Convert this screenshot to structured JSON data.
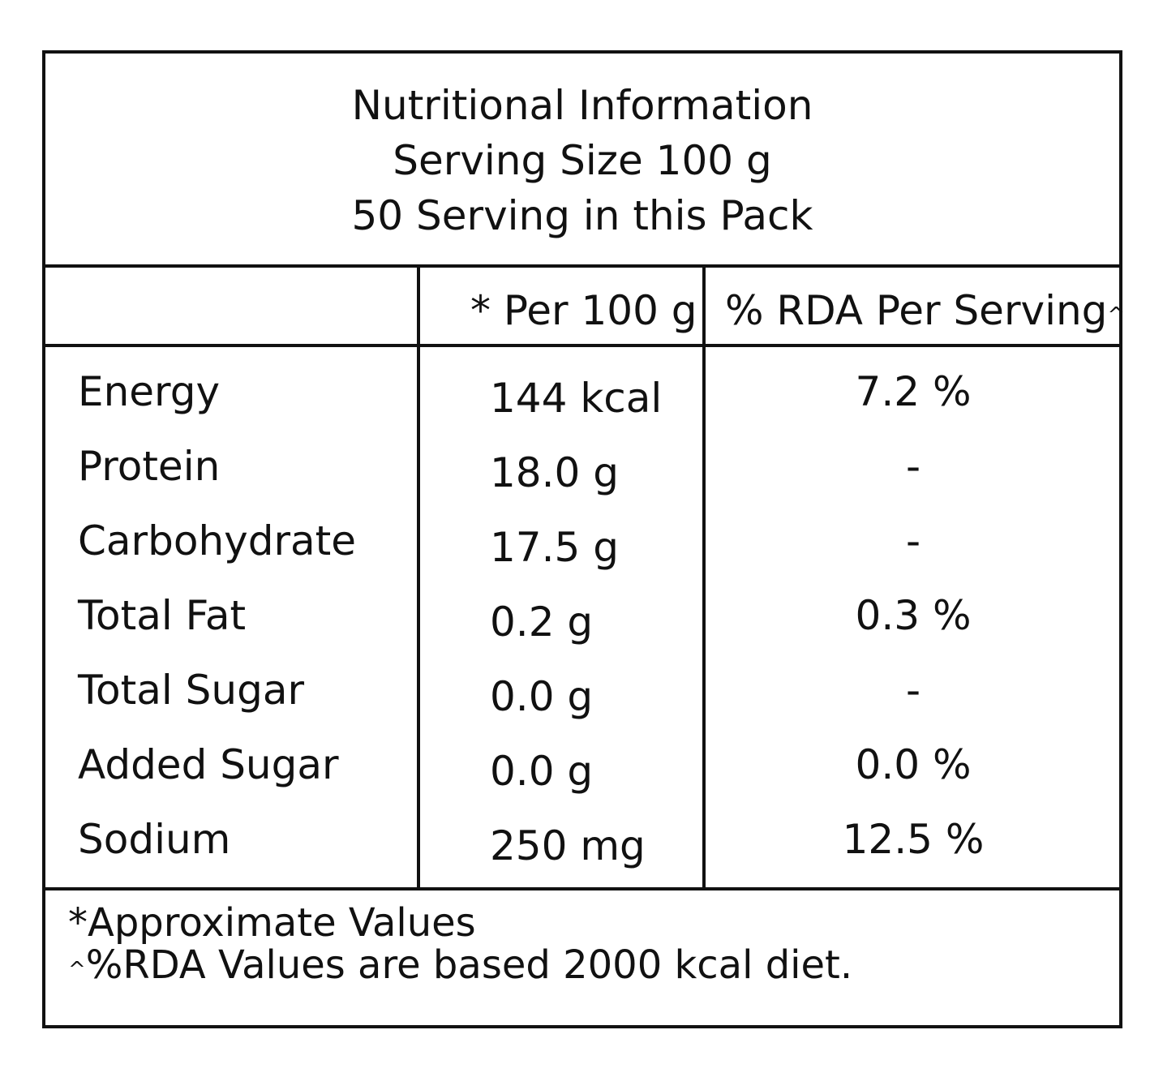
{
  "title": {
    "line1": "Nutritional Information",
    "line2": "Serving Size 100 g",
    "line3": "50 Serving in this Pack"
  },
  "columns": {
    "per_100g": "* Per 100 g",
    "rda": "% RDA Per Serving",
    "rda_mark": "^"
  },
  "rows": [
    {
      "name": "Energy",
      "value": "144 kcal",
      "rda": "7.2 %"
    },
    {
      "name": "Protein",
      "value": "18.0 g",
      "rda": "-"
    },
    {
      "name": "Carbohydrate",
      "value": "17.5 g",
      "rda": "-"
    },
    {
      "name": "Total Fat",
      "value": "0.2 g",
      "rda": "0.3 %"
    },
    {
      "name": "Total Sugar",
      "value": "0.0 g",
      "rda": "-"
    },
    {
      "name": "Added Sugar",
      "value": "0.0 g",
      "rda": "0.0 %"
    },
    {
      "name": "Sodium",
      "value": "250 mg",
      "rda": "12.5 %"
    }
  ],
  "footnotes": {
    "approx": "*Approximate Values",
    "rda_mark": "^",
    "rda_note": "%RDA Values are based 2000 kcal diet."
  }
}
